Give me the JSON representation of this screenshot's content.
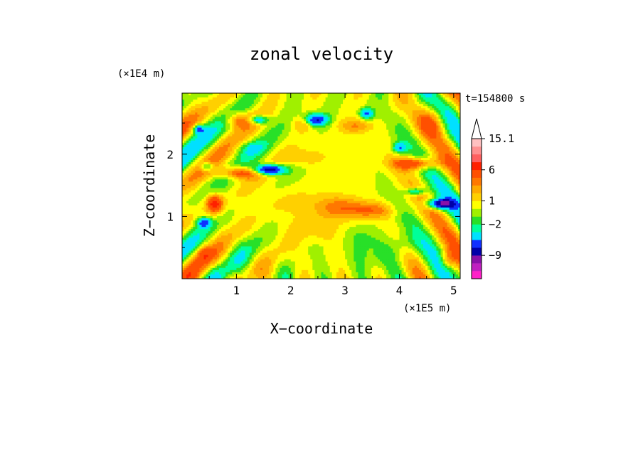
{
  "chart_data": {
    "type": "heatmap",
    "title": "zonal velocity",
    "xlabel": "X−coordinate",
    "ylabel": "Z−coordinate",
    "x_unit": "(×1E5 m)",
    "y_unit": "(×1E4 m)",
    "time_label": "t=154800 s",
    "xlim": [
      0.0,
      5.12
    ],
    "ylim": [
      0.0,
      2.98
    ],
    "x_ticks": [
      1,
      2,
      3,
      4,
      5
    ],
    "y_ticks": [
      1,
      2
    ],
    "colorbar": {
      "levels": [
        -13,
        -11,
        -9,
        -7,
        -5,
        -3,
        -2,
        -1,
        0,
        1,
        2,
        3,
        4,
        6,
        8,
        10,
        12,
        15.1
      ],
      "colors": [
        "#ff20c8",
        "#c020c0",
        "#8a10a8",
        "#0000a8",
        "#1030ff",
        "#00e0ff",
        "#00ff9a",
        "#28e028",
        "#a0f000",
        "#ffff00",
        "#ffd000",
        "#ffaa00",
        "#ff7800",
        "#ff5000",
        "#ff2000",
        "#ff6060",
        "#ff9090",
        "#ffc0c0"
      ],
      "labels": [
        "15.1",
        "6",
        "1",
        "−2",
        "−9"
      ],
      "label_values": [
        15.1,
        6,
        1,
        -2,
        -9
      ],
      "extend": "max"
    },
    "features": [
      {
        "x": 2.0,
        "z": 1.25,
        "sx": 0.75,
        "sz": 0.22,
        "value": 1.0
      },
      {
        "x": 2.5,
        "z": 0.8,
        "sx": 0.8,
        "sz": 0.35,
        "value": 1.2
      },
      {
        "x": 2.3,
        "z": 1.95,
        "sx": 0.35,
        "sz": 0.12,
        "value": 2.0
      },
      {
        "x": 2.9,
        "z": 1.15,
        "sx": 0.4,
        "sz": 0.18,
        "value": 3.0
      },
      {
        "x": 3.5,
        "z": 1.1,
        "sx": 0.4,
        "sz": 0.13,
        "value": 3.5
      },
      {
        "x": 3.2,
        "z": 2.45,
        "sx": 0.3,
        "sz": 0.12,
        "value": 3.0
      },
      {
        "x": 4.6,
        "z": 2.5,
        "sx": 0.25,
        "sz": 0.2,
        "value": 3.0
      },
      {
        "x": 2.25,
        "z": 2.5,
        "sx": 0.2,
        "sz": 0.12,
        "value": 3.0
      },
      {
        "x": 1.05,
        "z": 1.7,
        "sx": 0.35,
        "sz": 0.1,
        "value": 6.0
      },
      {
        "x": 4.3,
        "z": 1.85,
        "sx": 0.4,
        "sz": 0.1,
        "value": 6.0
      },
      {
        "x": 0.6,
        "z": 1.2,
        "sx": 0.15,
        "sz": 0.15,
        "value": 7.0
      },
      {
        "x": 1.05,
        "z": 2.55,
        "sx": 0.25,
        "sz": 0.12,
        "value": 4.0
      },
      {
        "x": 3.6,
        "z": 0.4,
        "sx": 0.5,
        "sz": 0.25,
        "value": -1.5
      },
      {
        "x": 3.3,
        "z": 0.7,
        "sx": 0.35,
        "sz": 0.2,
        "value": -1.5
      },
      {
        "x": 4.1,
        "z": 0.55,
        "sx": 0.3,
        "sz": 0.18,
        "value": -1.2
      },
      {
        "x": 1.6,
        "z": 1.75,
        "sx": 0.28,
        "sz": 0.08,
        "value": -10.0
      },
      {
        "x": 1.4,
        "z": 2.55,
        "sx": 0.18,
        "sz": 0.07,
        "value": -6.0
      },
      {
        "x": 2.45,
        "z": 2.55,
        "sx": 0.22,
        "sz": 0.1,
        "value": -8.0
      },
      {
        "x": 0.3,
        "z": 2.4,
        "sx": 0.1,
        "sz": 0.07,
        "value": -6.0
      },
      {
        "x": 3.4,
        "z": 2.65,
        "sx": 0.12,
        "sz": 0.08,
        "value": -6.0
      },
      {
        "x": 4.75,
        "z": 1.2,
        "sx": 0.25,
        "sz": 0.08,
        "value": -9.0
      },
      {
        "x": 4.3,
        "z": 1.4,
        "sx": 0.18,
        "sz": 0.06,
        "value": -5.0
      },
      {
        "x": 0.4,
        "z": 0.9,
        "sx": 0.12,
        "sz": 0.07,
        "value": -6.0
      },
      {
        "x": 0.45,
        "z": 1.8,
        "sx": 0.12,
        "sz": 0.07,
        "value": -5.0
      },
      {
        "x": 4.0,
        "z": 2.1,
        "sx": 0.12,
        "sz": 0.08,
        "value": -5.0
      },
      {
        "x": 1.25,
        "z": 2.1,
        "sx": 0.3,
        "sz": 0.12,
        "value": -2.2
      },
      {
        "x": 2.5,
        "z": 0.5,
        "sx": 0.35,
        "sz": 0.12,
        "value": -0.6
      },
      {
        "x": 1.0,
        "z": 0.5,
        "sx": 0.25,
        "sz": 0.2,
        "value": -0.6
      },
      {
        "x": 0.4,
        "z": 0.4,
        "sx": 0.15,
        "sz": 0.15,
        "value": 3.0
      },
      {
        "x": 4.9,
        "z": 0.3,
        "sx": 0.15,
        "sz": 0.15,
        "value": 3.0
      }
    ]
  }
}
